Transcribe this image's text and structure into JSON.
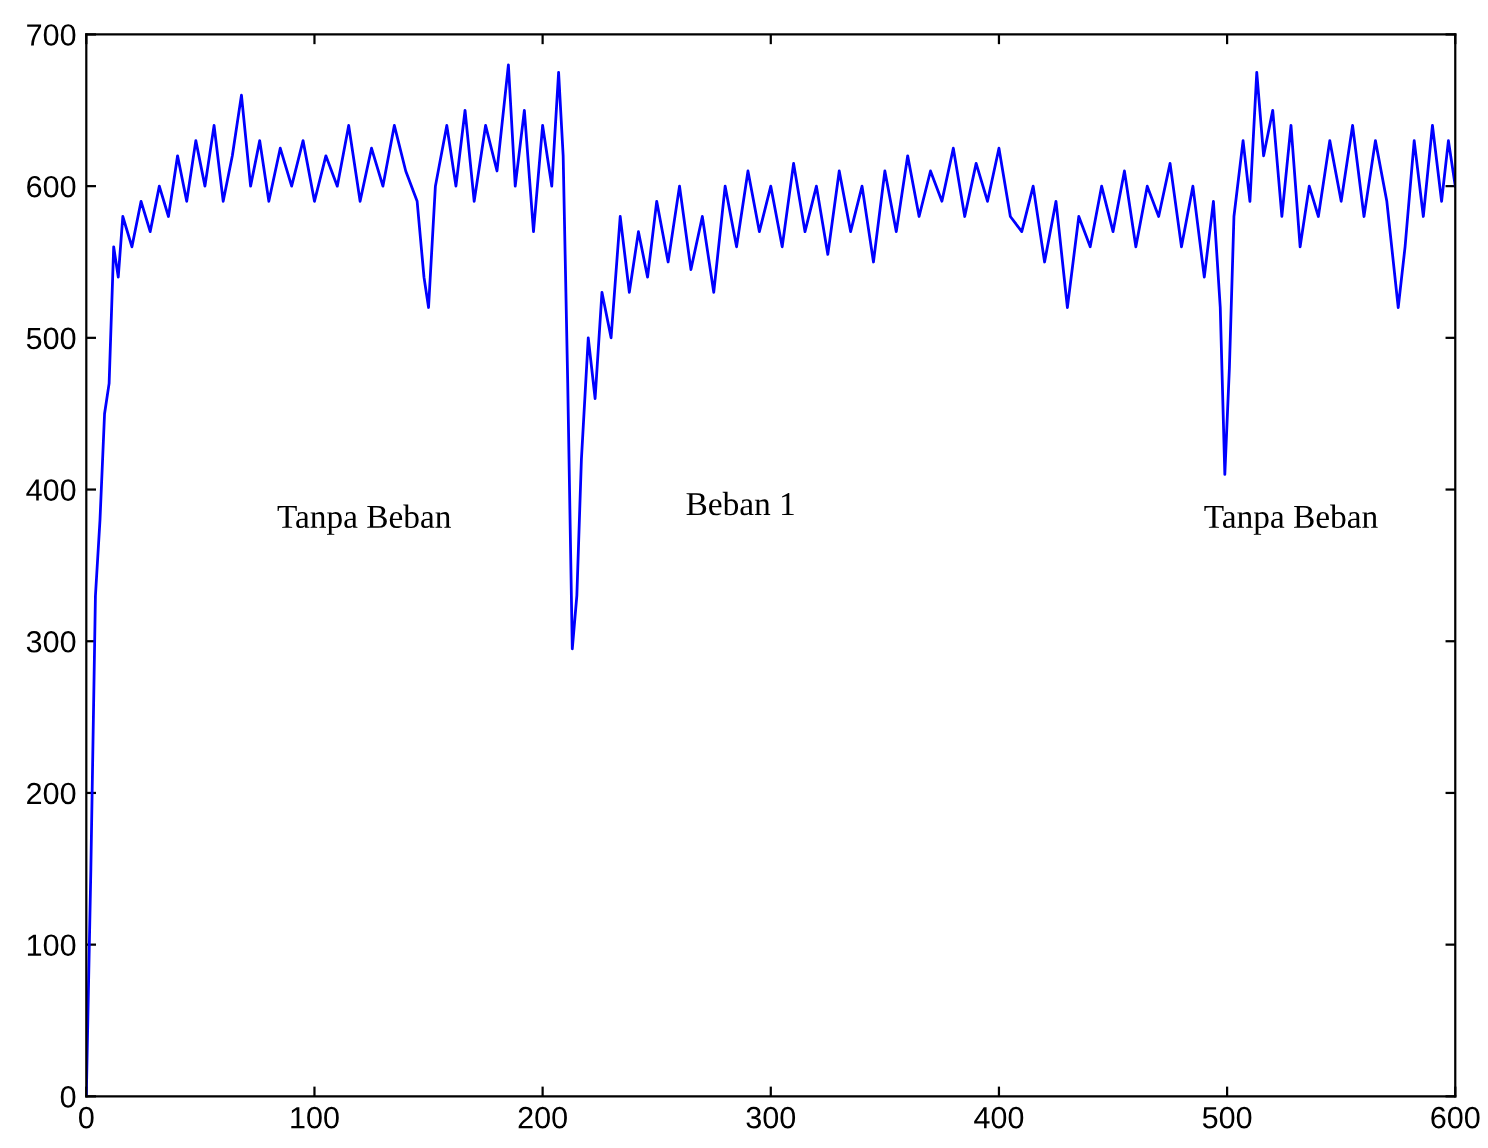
{
  "chart_data": {
    "type": "line",
    "xlim": [
      0,
      600
    ],
    "ylim": [
      0,
      700
    ],
    "xticks": [
      0,
      100,
      200,
      300,
      400,
      500,
      600
    ],
    "yticks": [
      0,
      100,
      200,
      300,
      400,
      500,
      600,
      700
    ],
    "grid": false,
    "legend": false,
    "marker": "none",
    "line_style": "solid",
    "annotations": [
      "Tanpa Beban",
      "Beban 1",
      "Tanpa Beban"
    ],
    "series": [
      {
        "color": "#0000ff",
        "x": [
          0,
          2,
          4,
          6,
          8,
          10,
          12,
          14,
          16,
          20,
          24,
          28,
          32,
          36,
          40,
          44,
          48,
          52,
          56,
          60,
          64,
          68,
          72,
          76,
          80,
          85,
          90,
          95,
          100,
          105,
          110,
          115,
          120,
          125,
          130,
          135,
          140,
          145,
          148,
          150,
          153,
          158,
          162,
          166,
          170,
          175,
          180,
          185,
          188,
          192,
          196,
          200,
          204,
          207,
          209,
          211,
          213,
          215,
          217,
          220,
          223,
          226,
          230,
          234,
          238,
          242,
          246,
          250,
          255,
          260,
          265,
          270,
          275,
          280,
          285,
          290,
          295,
          300,
          305,
          310,
          315,
          320,
          325,
          330,
          335,
          340,
          345,
          350,
          355,
          360,
          365,
          370,
          375,
          380,
          385,
          390,
          395,
          400,
          405,
          410,
          415,
          420,
          425,
          430,
          435,
          440,
          445,
          450,
          455,
          460,
          465,
          470,
          475,
          480,
          485,
          490,
          494,
          497,
          499,
          501,
          503,
          507,
          510,
          513,
          516,
          520,
          524,
          528,
          532,
          536,
          540,
          545,
          550,
          555,
          560,
          565,
          570,
          575,
          578,
          582,
          586,
          590,
          594,
          597,
          600
        ],
        "values": [
          0,
          150,
          330,
          380,
          450,
          470,
          560,
          540,
          580,
          560,
          590,
          570,
          600,
          580,
          620,
          590,
          630,
          600,
          640,
          590,
          620,
          660,
          600,
          630,
          590,
          625,
          600,
          630,
          590,
          620,
          600,
          640,
          590,
          625,
          600,
          640,
          610,
          590,
          540,
          520,
          600,
          640,
          600,
          650,
          590,
          640,
          610,
          680,
          600,
          650,
          570,
          640,
          600,
          675,
          620,
          470,
          295,
          330,
          420,
          500,
          460,
          530,
          500,
          580,
          530,
          570,
          540,
          590,
          550,
          600,
          545,
          580,
          530,
          600,
          560,
          610,
          570,
          600,
          560,
          615,
          570,
          600,
          555,
          610,
          570,
          600,
          550,
          610,
          570,
          620,
          580,
          610,
          590,
          625,
          580,
          615,
          590,
          625,
          580,
          570,
          600,
          550,
          590,
          520,
          580,
          560,
          600,
          570,
          610,
          560,
          600,
          580,
          615,
          560,
          600,
          540,
          590,
          520,
          410,
          480,
          580,
          630,
          590,
          675,
          620,
          650,
          580,
          640,
          560,
          600,
          580,
          630,
          590,
          640,
          580,
          630,
          590,
          520,
          560,
          630,
          580,
          640,
          590,
          630,
          600
        ]
      }
    ]
  }
}
